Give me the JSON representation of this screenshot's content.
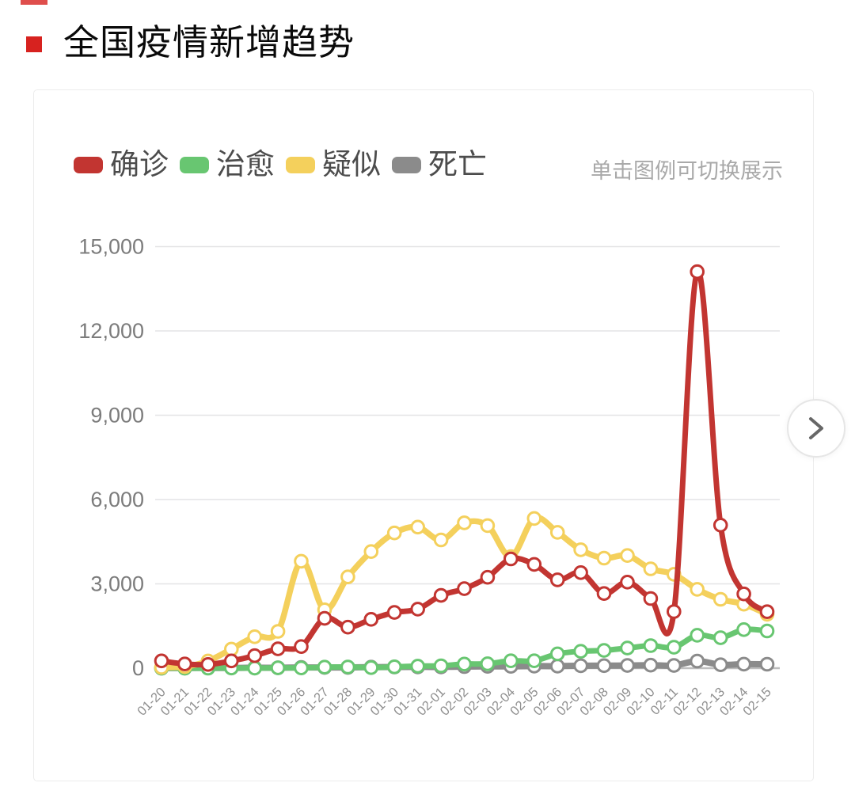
{
  "page": {
    "title": "全国疫情新增趋势"
  },
  "card": {
    "hint": "单击图例可切换展示",
    "legend": [
      {
        "key": "confirmed",
        "label": "确诊",
        "color": "#c23531"
      },
      {
        "key": "cured",
        "label": "治愈",
        "color": "#68c671"
      },
      {
        "key": "suspected",
        "label": "疑似",
        "color": "#f4d05c"
      },
      {
        "key": "death",
        "label": "死亡",
        "color": "#8b8b8b"
      }
    ]
  },
  "chart_data": {
    "type": "line",
    "smooth": true,
    "grid": true,
    "title": "全国疫情新增趋势",
    "legend_position": "top-left",
    "xlabel": "",
    "ylabel": "",
    "ylim": [
      0,
      15000
    ],
    "y_ticks": [
      {
        "v": 0,
        "label": "0"
      },
      {
        "v": 3000,
        "label": "3,000"
      },
      {
        "v": 6000,
        "label": "6,000"
      },
      {
        "v": 9000,
        "label": "9,000"
      },
      {
        "v": 12000,
        "label": "12,000"
      },
      {
        "v": 15000,
        "label": "15,000"
      }
    ],
    "categories": [
      "01-20",
      "01-21",
      "01-22",
      "01-23",
      "01-24",
      "01-25",
      "01-26",
      "01-27",
      "01-28",
      "01-29",
      "01-30",
      "01-31",
      "02-01",
      "02-02",
      "02-03",
      "02-04",
      "02-05",
      "02-06",
      "02-07",
      "02-08",
      "02-09",
      "02-10",
      "02-11",
      "02-12",
      "02-13",
      "02-14",
      "02-15"
    ],
    "series": [
      {
        "key": "confirmed",
        "name": "确诊",
        "color": "#c23531",
        "values": [
          258,
          149,
          131,
          259,
          444,
          688,
          769,
          1771,
          1459,
          1737,
          1982,
          2102,
          2590,
          2829,
          3235,
          3887,
          3694,
          3143,
          3399,
          2656,
          3062,
          2478,
          2015,
          14108,
          5090,
          2641,
          2009
        ]
      },
      {
        "key": "cured",
        "name": "治愈",
        "color": "#68c671",
        "values": [
          0,
          0,
          0,
          6,
          3,
          11,
          9,
          38,
          43,
          21,
          47,
          72,
          85,
          147,
          157,
          262,
          261,
          510,
          600,
          632,
          716,
          803,
          744,
          1171,
          1081,
          1373,
          1323
        ]
      },
      {
        "key": "suspected",
        "name": "疑似",
        "color": "#f4d05c",
        "values": [
          27,
          53,
          257,
          680,
          1118,
          1309,
          3806,
          2077,
          3248,
          4148,
          4812,
          5019,
          4562,
          5173,
          5072,
          3971,
          5328,
          4833,
          4214,
          3916,
          4008,
          3536,
          3342,
          2807,
          2450,
          2277,
          1918
        ]
      },
      {
        "key": "death",
        "name": "死亡",
        "color": "#8b8b8b",
        "values": [
          1,
          3,
          8,
          8,
          16,
          15,
          24,
          26,
          26,
          38,
          43,
          46,
          45,
          57,
          64,
          65,
          73,
          73,
          86,
          89,
          97,
          108,
          97,
          254,
          121,
          143,
          142
        ]
      }
    ]
  }
}
